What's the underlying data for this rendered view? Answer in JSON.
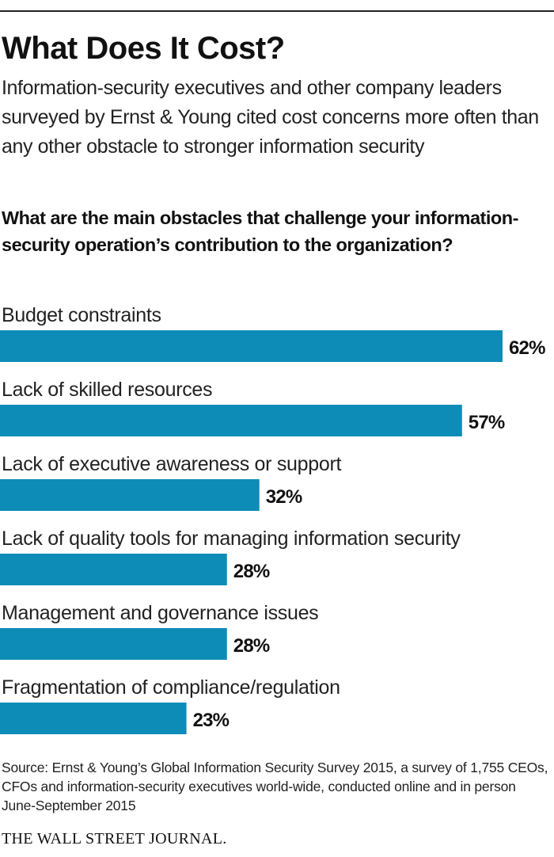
{
  "title": "What Does It Cost?",
  "subtitle": "Information-security executives and other company leaders surveyed by Ernst & Young cited cost concerns more often than any other obstacle to stronger information security",
  "question": "What are the main obstacles that challenge your information- security operation’s contribution to the organization?",
  "source": "Source: Ernst & Young’s Global Information Security Survey 2015, a survey of 1,755 CEOs, CFOs and information-security executives world-wide, conducted online and in person June-September 2015",
  "brand": "THE WALL STREET JOURNAL.",
  "colors": {
    "bar": "#0e8cb8"
  },
  "chart_data": {
    "type": "bar",
    "orientation": "horizontal",
    "categories": [
      "Budget constraints",
      "Lack of skilled resources",
      "Lack of executive awareness or support",
      "Lack of quality tools for managing information security",
      "Management and governance issues",
      "Fragmentation of compliance/regulation"
    ],
    "values": [
      62,
      57,
      32,
      28,
      28,
      23
    ],
    "value_labels": [
      "62%",
      "57%",
      "32%",
      "28%",
      "28%",
      "23%"
    ],
    "unit": "%",
    "xlim": [
      0,
      62
    ],
    "grid": false,
    "legend": "none"
  }
}
